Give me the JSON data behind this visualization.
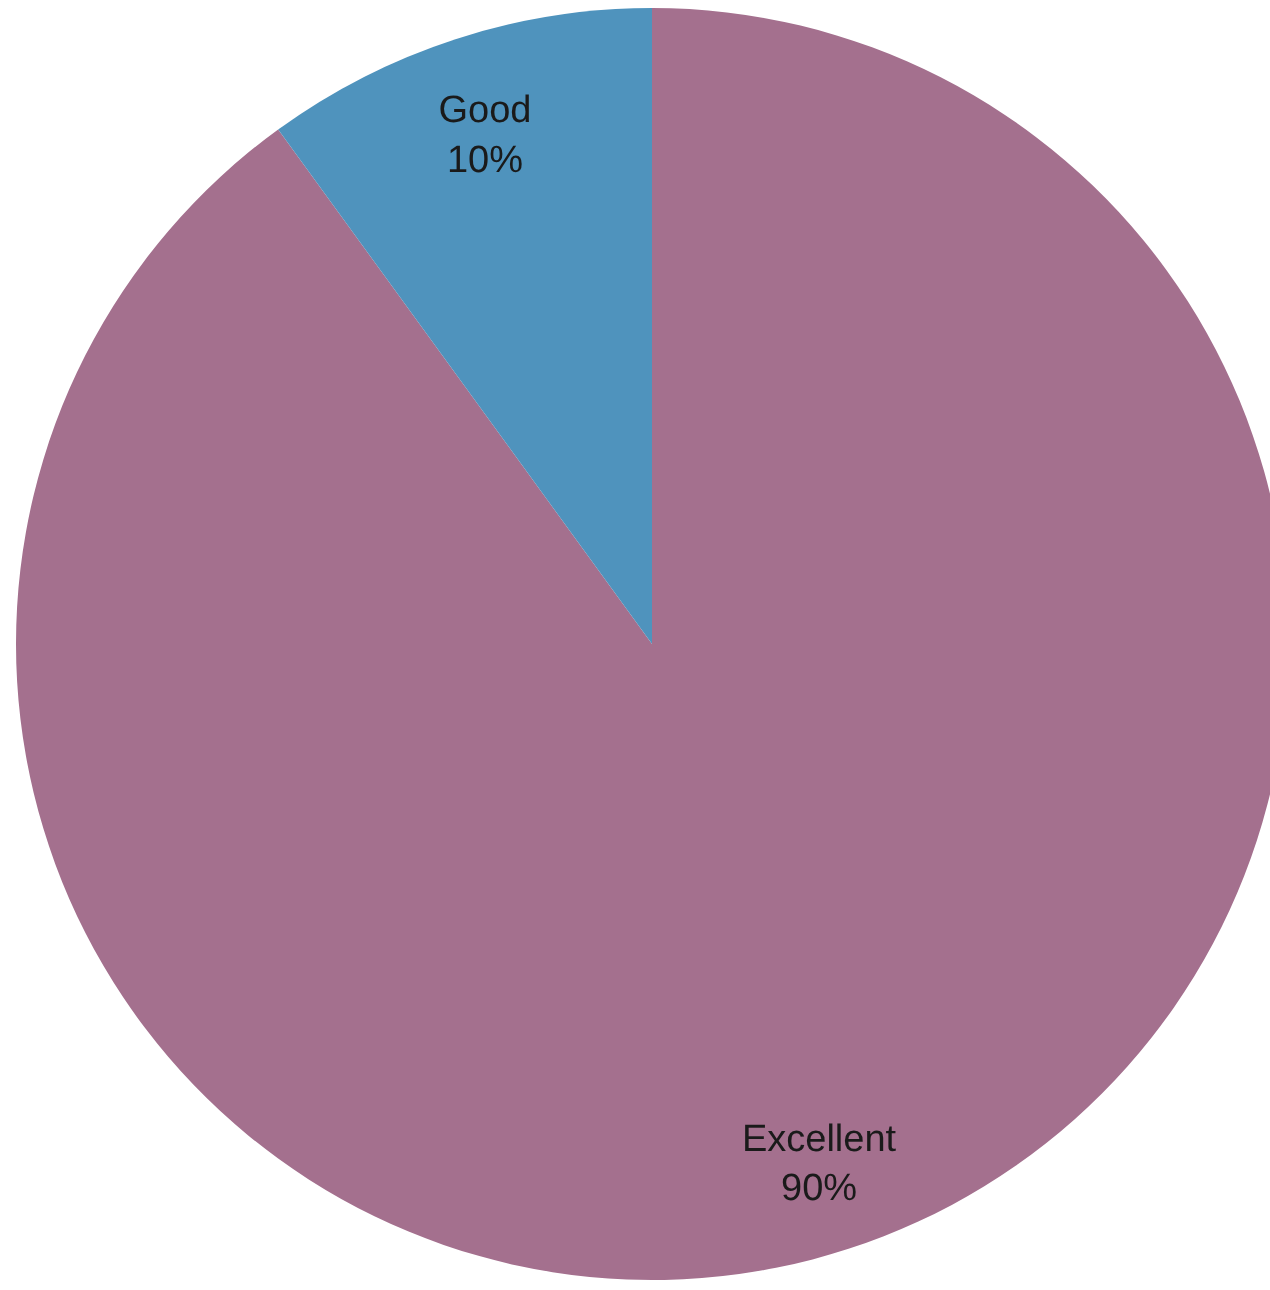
{
  "chart_data": {
    "type": "pie",
    "categories": [
      "Excellent",
      "Good"
    ],
    "values": [
      90,
      10
    ],
    "colors": [
      "#a4708e",
      "#4f93bd"
    ],
    "value_labels": [
      "90%",
      "10%"
    ]
  }
}
